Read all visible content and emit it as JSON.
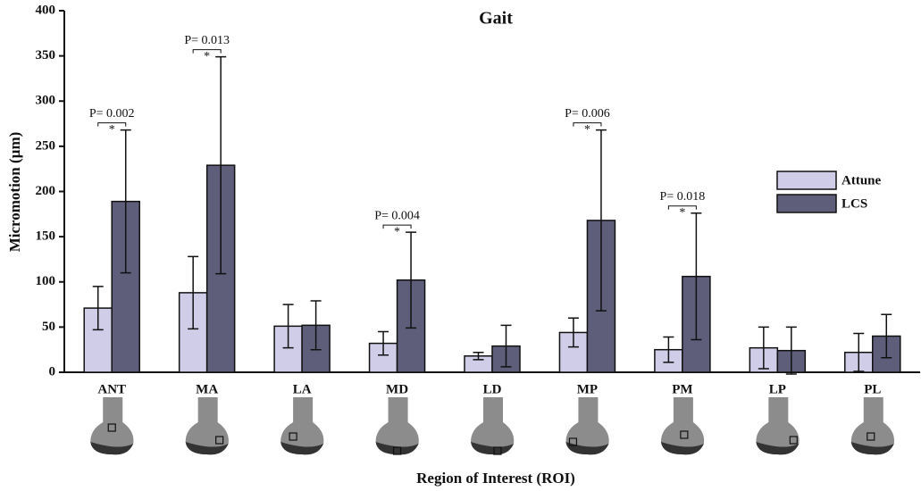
{
  "chart_data": {
    "type": "bar",
    "title": "Gait",
    "x_label": "Region of Interest (ROI)",
    "y_label": "Micromotion (µm)",
    "categories": [
      "ANT",
      "MA",
      "LA",
      "MD",
      "LD",
      "MP",
      "PM",
      "LP",
      "PL"
    ],
    "series": [
      {
        "name": "Attune",
        "color": "#cfcde8",
        "values": [
          71,
          88,
          51,
          32,
          18,
          44,
          25,
          27,
          22
        ],
        "errors": [
          24,
          40,
          24,
          13,
          4,
          16,
          14,
          23,
          21
        ]
      },
      {
        "name": "LCS",
        "color": "#5e5d7a",
        "values": [
          189,
          229,
          52,
          102,
          29,
          168,
          106,
          24,
          40
        ],
        "errors": [
          79,
          120,
          27,
          53,
          23,
          100,
          70,
          26,
          24
        ]
      }
    ],
    "p_labels": [
      "P= 0.002",
      "P= 0.013",
      null,
      "P= 0.004",
      null,
      "P= 0.006",
      "P= 0.018",
      null,
      null
    ],
    "p_markers": [
      "*",
      "*",
      null,
      "*",
      null,
      "*",
      "*",
      null,
      null
    ],
    "ylim": [
      0,
      400
    ],
    "yticks": [
      0,
      50,
      100,
      150,
      200,
      250,
      300,
      350,
      400
    ],
    "legend": "right"
  }
}
